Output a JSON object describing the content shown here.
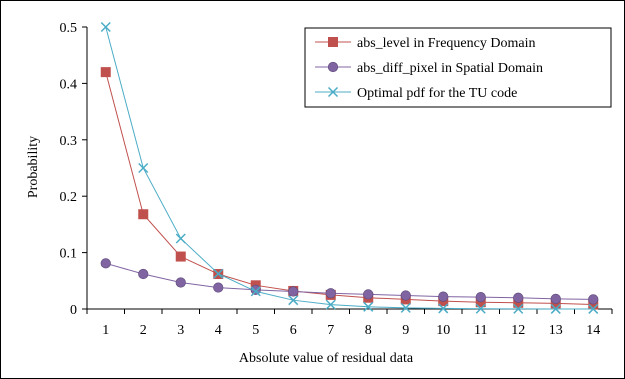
{
  "chart_data": {
    "type": "line",
    "title": "",
    "xlabel": "Absolute value of residual data",
    "ylabel": "Probability",
    "x": [
      1,
      2,
      3,
      4,
      5,
      6,
      7,
      8,
      9,
      10,
      11,
      12,
      13,
      14
    ],
    "ylim": [
      0,
      0.5
    ],
    "yticks": [
      0,
      0.1,
      0.2,
      0.3,
      0.4,
      0.5
    ],
    "ytick_labels": [
      "0",
      "0.1",
      "0.2",
      "0.3",
      "0.4",
      "0.5"
    ],
    "grid": false,
    "legend_position": "top-right",
    "series": [
      {
        "name": "abs_level in Frequency Domain",
        "color": "#c0504d",
        "marker": "square",
        "values": [
          0.42,
          0.168,
          0.093,
          0.062,
          0.042,
          0.032,
          0.025,
          0.02,
          0.017,
          0.014,
          0.012,
          0.011,
          0.01,
          0.008
        ]
      },
      {
        "name": "abs_diff_pixel in Spatial Domain",
        "color": "#8064a2",
        "marker": "circle",
        "values": [
          0.081,
          0.062,
          0.047,
          0.038,
          0.034,
          0.031,
          0.028,
          0.026,
          0.024,
          0.022,
          0.021,
          0.02,
          0.018,
          0.017
        ]
      },
      {
        "name": "Optimal pdf for the TU code",
        "color": "#4bacc6",
        "marker": "x",
        "values": [
          0.5,
          0.25,
          0.125,
          0.0625,
          0.03125,
          0.015625,
          0.0078,
          0.0039,
          0.002,
          0.001,
          0.0005,
          0.0002,
          0.0001,
          6e-05
        ]
      }
    ]
  }
}
